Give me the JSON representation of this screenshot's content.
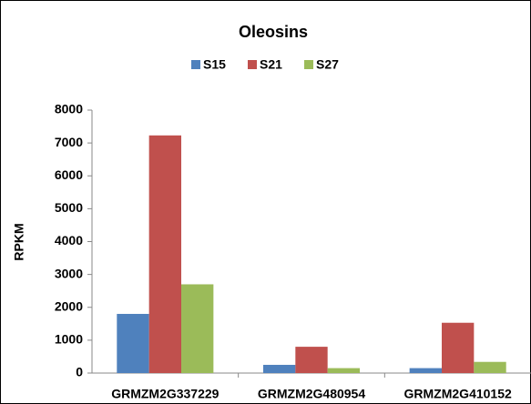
{
  "chart_data": {
    "type": "bar",
    "title": "Oleosins",
    "ylabel": "RPKM",
    "categories": [
      "GRMZM2G337229",
      "GRMZM2G480954",
      "GRMZM2G410152"
    ],
    "series": [
      {
        "name": "S15",
        "color": "#4f81bd",
        "values": [
          1800,
          250,
          150
        ]
      },
      {
        "name": "S21",
        "color": "#c0504d",
        "values": [
          7230,
          800,
          1530
        ]
      },
      {
        "name": "S27",
        "color": "#9bbb59",
        "values": [
          2700,
          150,
          340
        ]
      }
    ],
    "ylim": [
      0,
      8000
    ],
    "yticks": [
      0,
      1000,
      2000,
      3000,
      4000,
      5000,
      6000,
      7000,
      8000
    ],
    "grid": false,
    "legend": "top"
  }
}
